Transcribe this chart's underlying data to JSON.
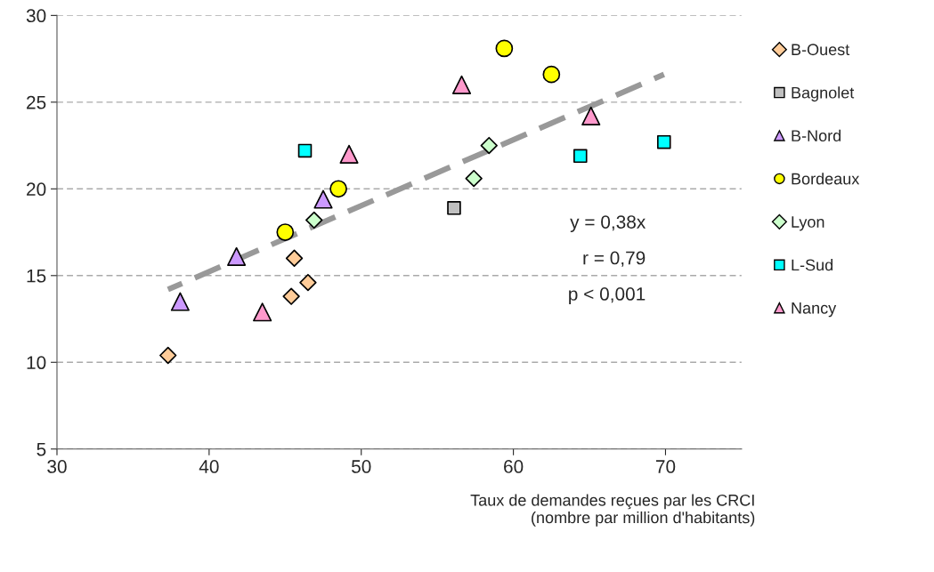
{
  "chart_data": {
    "type": "scatter",
    "xlabel": "Taux de demandes reçues par les CRCI\n(nombre par million d'habitants)",
    "xlim": [
      30,
      75
    ],
    "xticks": [
      30,
      40,
      50,
      60,
      70
    ],
    "ylim": [
      5,
      30
    ],
    "yticks": [
      5,
      10,
      15,
      20,
      25,
      30
    ],
    "grid": "y",
    "legend": "right",
    "annotations": [
      "y = 0,38x",
      "r = 0,79",
      "p < 0,001"
    ],
    "series": [
      {
        "name": "B-Ouest",
        "color": "#ffcc99",
        "marker": "diamond",
        "x": [
          37.3,
          45.4,
          45.6,
          46.5
        ],
        "values": [
          10.4,
          13.8,
          16.0,
          14.6
        ]
      },
      {
        "name": "Bagnolet",
        "color": "#c0c0c0",
        "marker": "square",
        "x": [
          56.1
        ],
        "values": [
          18.9
        ]
      },
      {
        "name": "B-Nord",
        "color": "#cc99ff",
        "marker": "triangle",
        "x": [
          38.1,
          41.8,
          47.5
        ],
        "values": [
          13.5,
          16.1,
          19.4
        ]
      },
      {
        "name": "Bordeaux",
        "color": "#ffff00",
        "marker": "circle",
        "x": [
          45.0,
          48.5,
          59.4,
          62.5
        ],
        "values": [
          17.5,
          20.0,
          28.1,
          26.6
        ]
      },
      {
        "name": "Lyon",
        "color": "#ccffcc",
        "marker": "diamond",
        "x": [
          46.9,
          57.4,
          58.4
        ],
        "values": [
          18.2,
          20.6,
          22.5
        ]
      },
      {
        "name": "L-Sud",
        "color": "#00ffff",
        "marker": "square",
        "x": [
          46.3,
          64.4,
          69.9
        ],
        "values": [
          22.2,
          21.9,
          22.7
        ]
      },
      {
        "name": "Nancy",
        "color": "#ff99cc",
        "marker": "triangle",
        "x": [
          49.2,
          43.5,
          56.6,
          65.1
        ],
        "values": [
          22.0,
          12.9,
          26.0,
          24.2
        ]
      },
      {
        "type": "line",
        "color": "#999999",
        "line_style": "dashed",
        "marker": "none",
        "x": [
          37.3,
          69.9
        ],
        "values": [
          14.2,
          26.6
        ]
      }
    ]
  }
}
